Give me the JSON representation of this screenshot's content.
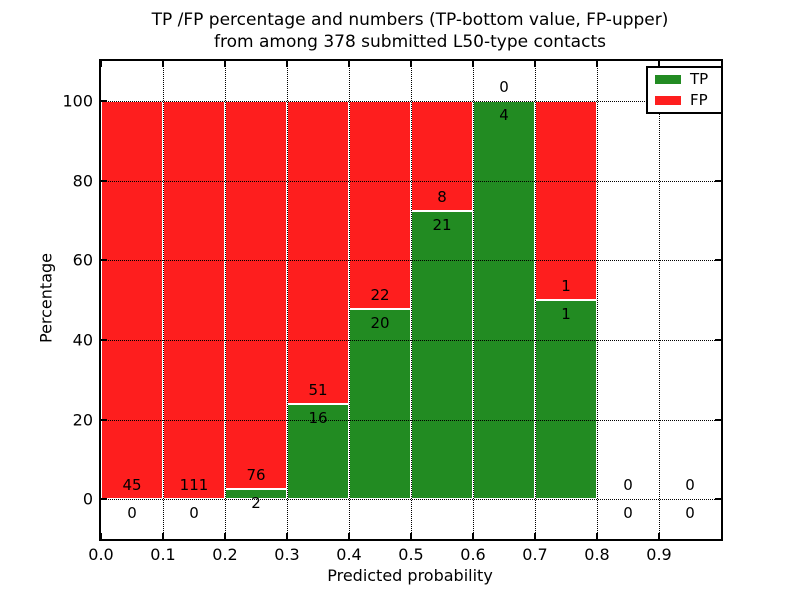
{
  "chart_data": {
    "type": "bar",
    "stacked": true,
    "title": "TP /FP percentage and numbers (TP-bottom value, FP-upper)\nfrom among 378 submitted L50-type contacts",
    "title_line1": "TP /FP percentage and numbers (TP-bottom value, FP-upper)",
    "title_line2": "from among 378 submitted L50-type contacts",
    "total_submitted": 378,
    "xlabel": "Predicted probability",
    "ylabel": "Percentage",
    "xlim": [
      0.0,
      1.0
    ],
    "ylim": [
      -10,
      110
    ],
    "grid": true,
    "grid_style": "dotted",
    "xtick_labels": [
      "0.0",
      "0.1",
      "0.2",
      "0.3",
      "0.4",
      "0.5",
      "0.6",
      "0.7",
      "0.8",
      "0.9"
    ],
    "xtick_values": [
      0.0,
      0.1,
      0.2,
      0.3,
      0.4,
      0.5,
      0.6,
      0.7,
      0.8,
      0.9
    ],
    "ytick_labels": [
      "0",
      "20",
      "40",
      "60",
      "80",
      "100"
    ],
    "ytick_values": [
      0,
      20,
      40,
      60,
      80,
      100
    ],
    "legend_position": "upper right",
    "legend": [
      {
        "label": "TP",
        "color": "#228b22"
      },
      {
        "label": "FP",
        "color": "#fe1e1e"
      }
    ],
    "colors": {
      "tp": "#228b22",
      "fp": "#fe1e1e",
      "bar_edge": "#ffffff",
      "axes": "#000000",
      "background": "#ffffff"
    },
    "bins": [
      {
        "x_start": 0.0,
        "x_end": 0.1,
        "tp_count": "0",
        "fp_count": "45",
        "tp_pct": 0,
        "fp_pct": 100,
        "has_bar": true
      },
      {
        "x_start": 0.1,
        "x_end": 0.2,
        "tp_count": "0",
        "fp_count": "111",
        "tp_pct": 0,
        "fp_pct": 100,
        "has_bar": true
      },
      {
        "x_start": 0.2,
        "x_end": 0.3,
        "tp_count": "2",
        "fp_count": "76",
        "tp_pct": 2.56,
        "fp_pct": 97.44,
        "has_bar": true
      },
      {
        "x_start": 0.3,
        "x_end": 0.4,
        "tp_count": "16",
        "fp_count": "51",
        "tp_pct": 23.88,
        "fp_pct": 76.12,
        "has_bar": true
      },
      {
        "x_start": 0.4,
        "x_end": 0.5,
        "tp_count": "20",
        "fp_count": "22",
        "tp_pct": 47.62,
        "fp_pct": 52.38,
        "has_bar": true
      },
      {
        "x_start": 0.5,
        "x_end": 0.6,
        "tp_count": "21",
        "fp_count": "8",
        "tp_pct": 72.41,
        "fp_pct": 27.59,
        "has_bar": true
      },
      {
        "x_start": 0.6,
        "x_end": 0.7,
        "tp_count": "4",
        "fp_count": "0",
        "tp_pct": 100,
        "fp_pct": 0,
        "has_bar": true
      },
      {
        "x_start": 0.7,
        "x_end": 0.8,
        "tp_count": "1",
        "fp_count": "1",
        "tp_pct": 50,
        "fp_pct": 50,
        "has_bar": true
      },
      {
        "x_start": 0.8,
        "x_end": 0.9,
        "tp_count": "0",
        "fp_count": "0",
        "tp_pct": 0,
        "fp_pct": 0,
        "has_bar": false
      },
      {
        "x_start": 0.9,
        "x_end": 1.0,
        "tp_count": "0",
        "fp_count": "0",
        "tp_pct": 0,
        "fp_pct": 0,
        "has_bar": false
      }
    ]
  }
}
